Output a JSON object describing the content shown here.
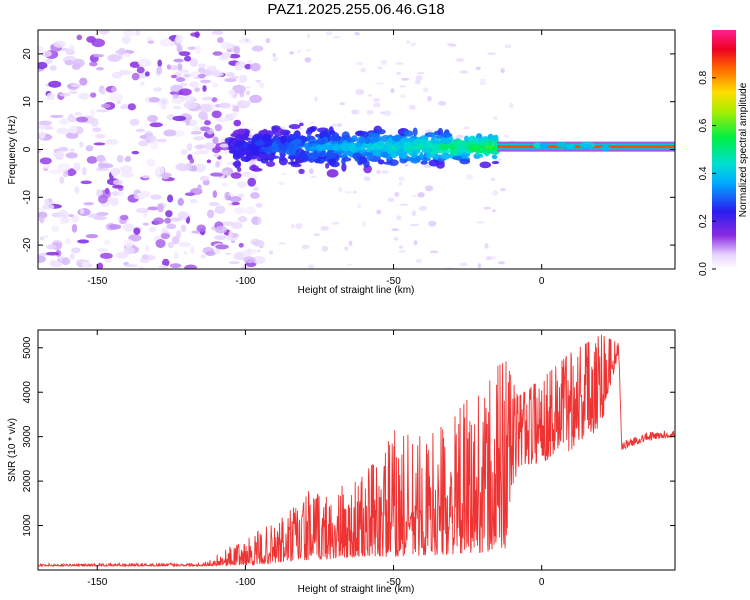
{
  "chart_data": [
    {
      "type": "heatmap",
      "title": "PAZ1.2025.255.06.46.G18",
      "xlabel": "Height of straight line (km)",
      "ylabel": "Frequency (Hz)",
      "xlim": [
        -170,
        45
      ],
      "ylim": [
        -25,
        25
      ],
      "x_ticks": [
        "-150",
        "-100",
        "-50",
        "0"
      ],
      "y_ticks": [
        "20",
        "10",
        "0",
        "-10",
        "-20"
      ],
      "colorbar": {
        "label": "Normalized spectral amplitude",
        "range": [
          0,
          1
        ],
        "ticks": [
          "0.0",
          "0.2",
          "0.4",
          "0.6",
          "0.8"
        ],
        "colormap": "white-purple-blue-cyan-green-yellow-red-magenta"
      },
      "features": {
        "noise_region_x": [
          -170,
          -105
        ],
        "transition_band": {
          "x": [
            -105,
            -15
          ],
          "freq_center": 0.5,
          "freq_spread": 4
        },
        "tone_line": {
          "x": [
            -15,
            45
          ],
          "freq": 0.6
        }
      },
      "grid": false
    },
    {
      "type": "line",
      "title": "",
      "xlabel": "Height of straight line (km)",
      "ylabel": "SNR (10 * v/v)",
      "xlim": [
        -170,
        45
      ],
      "ylim": [
        0,
        5400
      ],
      "x_ticks": [
        "-150",
        "-100",
        "-50",
        "0"
      ],
      "y_ticks": [
        "1000",
        "2000",
        "3000",
        "4000",
        "5000"
      ],
      "color": "#ee3333",
      "series": [
        {
          "x": [
            -170,
            -150,
            -130,
            -115,
            -108,
            -100,
            -90,
            -80,
            -70,
            -60,
            -50,
            -40,
            -30,
            -20,
            -12,
            -8,
            0,
            10,
            20,
            26,
            27,
            35,
            45
          ],
          "lower": [
            90,
            90,
            90,
            90,
            100,
            110,
            150,
            220,
            250,
            300,
            300,
            320,
            350,
            400,
            400,
            2300,
            2400,
            2700,
            3200,
            4900,
            2700,
            2900,
            3000
          ],
          "upper": [
            180,
            180,
            200,
            220,
            450,
            700,
            1100,
            1800,
            1800,
            2200,
            3200,
            3100,
            3400,
            4400,
            4700,
            3900,
            4300,
            4900,
            5300,
            5100,
            2900,
            3100,
            3150
          ]
        }
      ],
      "grid": false
    }
  ]
}
